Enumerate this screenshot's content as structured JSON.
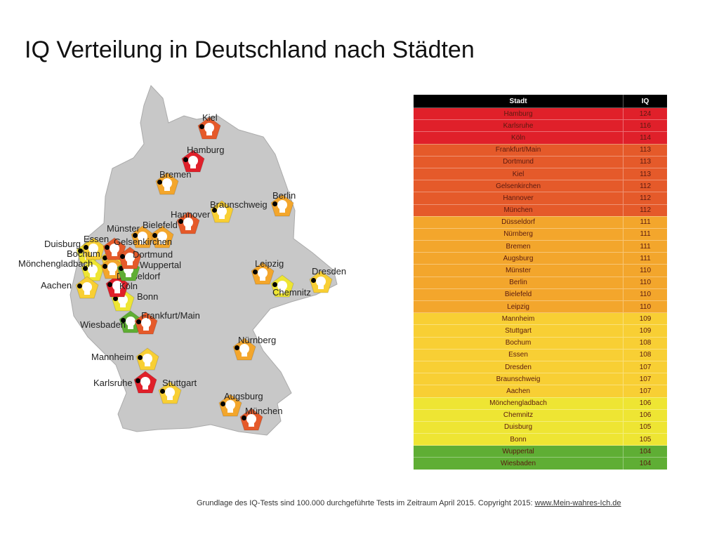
{
  "title": "IQ Verteilung in Deutschland nach Städten",
  "colors": {
    "red": "#e0202a",
    "orangered": "#e55a2a",
    "orange": "#f3a62c",
    "amber": "#f8cf34",
    "yellow": "#eee533",
    "green": "#5fae34"
  },
  "table": {
    "headers": [
      "Stadt",
      "IQ"
    ],
    "rows": [
      [
        "Hamburg",
        "124",
        "red"
      ],
      [
        "Karlsruhe",
        "116",
        "red"
      ],
      [
        "Köln",
        "114",
        "red"
      ],
      [
        "Frankfurt/Main",
        "113",
        "orangered"
      ],
      [
        "Dortmund",
        "113",
        "orangered"
      ],
      [
        "Kiel",
        "113",
        "orangered"
      ],
      [
        "Gelsenkirchen",
        "112",
        "orangered"
      ],
      [
        "Hannover",
        "112",
        "orangered"
      ],
      [
        "München",
        "112",
        "orangered"
      ],
      [
        "Düsseldorf",
        "111",
        "orange"
      ],
      [
        "Nürnberg",
        "111",
        "orange"
      ],
      [
        "Bremen",
        "111",
        "orange"
      ],
      [
        "Augsburg",
        "111",
        "orange"
      ],
      [
        "Münster",
        "110",
        "orange"
      ],
      [
        "Berlin",
        "110",
        "orange"
      ],
      [
        "Bielefeld",
        "110",
        "orange"
      ],
      [
        "Leipzig",
        "110",
        "orange"
      ],
      [
        "Mannheim",
        "109",
        "amber"
      ],
      [
        "Stuttgart",
        "109",
        "amber"
      ],
      [
        "Bochum",
        "108",
        "amber"
      ],
      [
        "Essen",
        "108",
        "amber"
      ],
      [
        "Dresden",
        "107",
        "amber"
      ],
      [
        "Braunschweig",
        "107",
        "amber"
      ],
      [
        "Aachen",
        "107",
        "amber"
      ],
      [
        "Mönchengladbach",
        "106",
        "yellow"
      ],
      [
        "Chemnitz",
        "106",
        "yellow"
      ],
      [
        "Duisburg",
        "105",
        "yellow"
      ],
      [
        "Bonn",
        "105",
        "yellow"
      ],
      [
        "Wuppertal",
        "104",
        "green"
      ],
      [
        "Wiesbaden",
        "104",
        "green"
      ]
    ]
  },
  "footer": {
    "text": "Grundlage des IQ-Tests sind 100.000 durchgeführte Tests im Zeitraum April 2015. Copyright 2015: ",
    "link": "www.Mein-wahres-Ich.de"
  }
}
